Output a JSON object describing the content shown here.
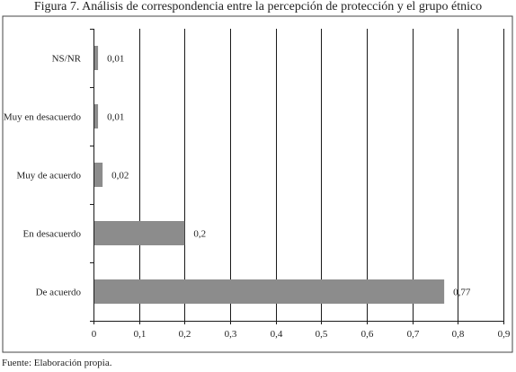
{
  "figure_title": "Figura 7. Análisis de correspondencia entre la percepción de protección y el grupo étnico",
  "source_note": "Fuente: Elaboración propia.",
  "chart_data": {
    "type": "bar",
    "orientation": "horizontal",
    "categories": [
      "NS/NR",
      "Muy en desacuerdo",
      "Muy de acuerdo",
      "En desacuerdo",
      "De acuerdo"
    ],
    "values": [
      0.01,
      0.01,
      0.02,
      0.2,
      0.77
    ],
    "value_labels": [
      "0,01",
      "0,01",
      "0,02",
      "0,2",
      "0,77"
    ],
    "xlim": [
      0,
      0.9
    ],
    "x_ticks": [
      0,
      0.1,
      0.2,
      0.3,
      0.4,
      0.5,
      0.6,
      0.7,
      0.8,
      0.9
    ],
    "x_tick_labels": [
      "0",
      "0,1",
      "0,2",
      "0,3",
      "0,4",
      "0,5",
      "0,6",
      "0,7",
      "0,8",
      "0,9"
    ],
    "xlabel": "",
    "ylabel": "",
    "grid": "vertical",
    "legend": "none",
    "colors": {
      "bar": "#8c8c8c",
      "grid": "#1a1a1a",
      "frame": "#444444",
      "text": "#222222"
    }
  }
}
